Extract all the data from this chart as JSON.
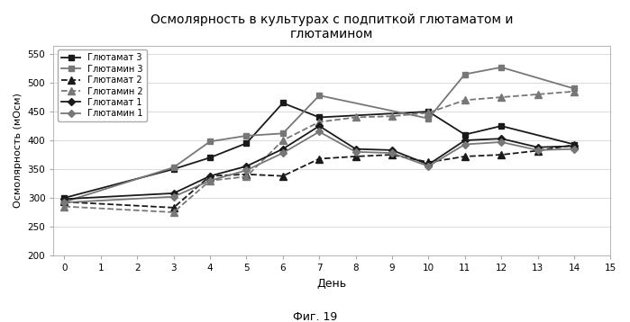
{
  "title": "Осмолярность в культурах с подпиткой глютаматом и\nглютамином",
  "xlabel": "День",
  "ylabel": "Осмолярность (мОсм)",
  "caption": "Фиг. 19",
  "xlim": [
    -0.3,
    15
  ],
  "ylim": [
    200,
    565
  ],
  "yticks": [
    200,
    250,
    300,
    350,
    400,
    450,
    500,
    550
  ],
  "xticks": [
    0,
    1,
    2,
    3,
    4,
    5,
    6,
    7,
    8,
    9,
    10,
    11,
    12,
    13,
    14,
    15
  ],
  "series": [
    {
      "label": "Глютамат 3",
      "color": "#1a1a1a",
      "linestyle": "-",
      "marker": "s",
      "markersize": 5,
      "linewidth": 1.3,
      "x": [
        0,
        3,
        4,
        5,
        6,
        7,
        10,
        11,
        12,
        14
      ],
      "y": [
        300,
        350,
        370,
        395,
        465,
        440,
        450,
        410,
        425,
        393
      ]
    },
    {
      "label": "Глютамин 3",
      "color": "#777777",
      "linestyle": "-",
      "marker": "s",
      "markersize": 5,
      "linewidth": 1.3,
      "x": [
        0,
        3,
        4,
        5,
        6,
        7,
        10,
        11,
        12,
        14
      ],
      "y": [
        293,
        353,
        398,
        408,
        412,
        478,
        438,
        515,
        527,
        490
      ]
    },
    {
      "label": "Глютамат 2",
      "color": "#1a1a1a",
      "linestyle": "--",
      "marker": "^",
      "markersize": 6,
      "linewidth": 1.3,
      "x": [
        0,
        3,
        4,
        5,
        6,
        7,
        8,
        9,
        10,
        11,
        12,
        13,
        14
      ],
      "y": [
        293,
        283,
        338,
        341,
        338,
        368,
        372,
        375,
        362,
        372,
        375,
        382,
        392
      ]
    },
    {
      "label": "Глютамин 2",
      "color": "#777777",
      "linestyle": "--",
      "marker": "^",
      "markersize": 6,
      "linewidth": 1.3,
      "x": [
        0,
        3,
        4,
        5,
        6,
        7,
        8,
        9,
        10,
        11,
        12,
        13,
        14
      ],
      "y": [
        285,
        275,
        330,
        337,
        400,
        432,
        440,
        442,
        448,
        470,
        475,
        480,
        485
      ]
    },
    {
      "label": "Глютамат 1",
      "color": "#1a1a1a",
      "linestyle": "-",
      "marker": "D",
      "markersize": 4,
      "linewidth": 1.3,
      "x": [
        0,
        3,
        4,
        5,
        6,
        7,
        8,
        9,
        10,
        11,
        12,
        13,
        14
      ],
      "y": [
        298,
        308,
        338,
        355,
        385,
        425,
        385,
        383,
        358,
        400,
        403,
        388,
        390
      ]
    },
    {
      "label": "Глютамин 1",
      "color": "#777777",
      "linestyle": "-",
      "marker": "D",
      "markersize": 4,
      "linewidth": 1.3,
      "x": [
        0,
        3,
        4,
        5,
        6,
        7,
        8,
        9,
        10,
        11,
        12,
        13,
        14
      ],
      "y": [
        292,
        302,
        330,
        348,
        378,
        415,
        380,
        378,
        355,
        393,
        397,
        383,
        385
      ]
    }
  ]
}
